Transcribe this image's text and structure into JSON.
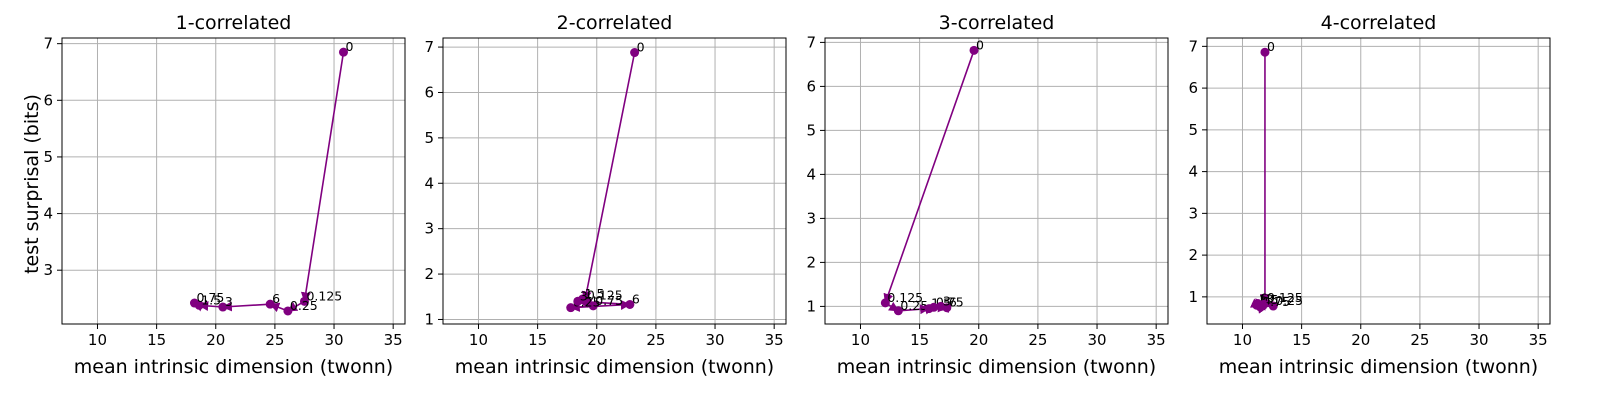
{
  "figure": {
    "shared_ylabel": "test surprisal (bits)"
  },
  "colors": {
    "series": "#800080",
    "grid": "#b0b0b0",
    "axis": "#000000"
  },
  "chart_data": [
    {
      "type": "line",
      "title": "1-correlated",
      "xlabel": "mean intrinsic dimension (twonn)",
      "ylabel": "test surprisal (bits)",
      "xlim": [
        7,
        36
      ],
      "ylim": [
        2.05,
        7.1
      ],
      "xticks": [
        10,
        15,
        20,
        25,
        30,
        35
      ],
      "yticks": [
        3,
        4,
        5,
        6,
        7
      ],
      "grid": true,
      "series": [
        {
          "labels": [
            "0",
            "0.125",
            "0.25",
            "6",
            "3",
            "1.5",
            "0.75"
          ],
          "x": [
            30.8,
            27.5,
            26.1,
            24.6,
            20.6,
            18.6,
            18.2
          ],
          "y": [
            6.85,
            2.45,
            2.28,
            2.4,
            2.35,
            2.38,
            2.42
          ]
        }
      ]
    },
    {
      "type": "line",
      "title": "2-correlated",
      "xlabel": "mean intrinsic dimension (twonn)",
      "ylabel": "",
      "xlim": [
        7,
        36
      ],
      "ylim": [
        0.9,
        7.2
      ],
      "xticks": [
        10,
        15,
        20,
        25,
        30,
        35
      ],
      "yticks": [
        1,
        2,
        3,
        4,
        5,
        6,
        7
      ],
      "grid": true,
      "series": [
        {
          "labels": [
            "0",
            "0.125",
            "1.5",
            "0.75",
            "0.25",
            "6",
            "3"
          ],
          "x": [
            23.2,
            19.0,
            18.8,
            19.7,
            17.8,
            22.8,
            18.4
          ],
          "y": [
            6.88,
            1.42,
            1.45,
            1.3,
            1.26,
            1.33,
            1.4
          ]
        }
      ]
    },
    {
      "type": "line",
      "title": "3-correlated",
      "xlabel": "mean intrinsic dimension (twonn)",
      "ylabel": "",
      "xlim": [
        7,
        36
      ],
      "ylim": [
        0.6,
        7.1
      ],
      "xticks": [
        10,
        15,
        20,
        25,
        30,
        35
      ],
      "yticks": [
        1,
        2,
        3,
        4,
        5,
        6,
        7
      ],
      "grid": true,
      "series": [
        {
          "labels": [
            "0",
            "0.125",
            "0.25",
            "1.5",
            "0.75",
            "6",
            "3"
          ],
          "x": [
            19.6,
            12.1,
            13.2,
            15.8,
            16.2,
            17.3,
            16.8
          ],
          "y": [
            6.82,
            1.08,
            0.9,
            0.95,
            0.98,
            0.97,
            1.0
          ]
        }
      ]
    },
    {
      "type": "line",
      "title": "4-correlated",
      "xlabel": "mean intrinsic dimension (twonn)",
      "ylabel": "",
      "xlim": [
        7,
        36
      ],
      "ylim": [
        0.35,
        7.2
      ],
      "xticks": [
        10,
        15,
        20,
        25,
        30,
        35
      ],
      "yticks": [
        1,
        2,
        3,
        4,
        5,
        6,
        7
      ],
      "grid": true,
      "series": [
        {
          "labels": [
            "0",
            "0.125",
            "0.25",
            "1.5",
            "0.75",
            "6",
            "3"
          ],
          "x": [
            11.9,
            11.9,
            12.6,
            11.2,
            11.5,
            11.3,
            11.8
          ],
          "y": [
            6.86,
            0.85,
            0.78,
            0.8,
            0.76,
            0.84,
            0.82
          ]
        }
      ]
    }
  ]
}
